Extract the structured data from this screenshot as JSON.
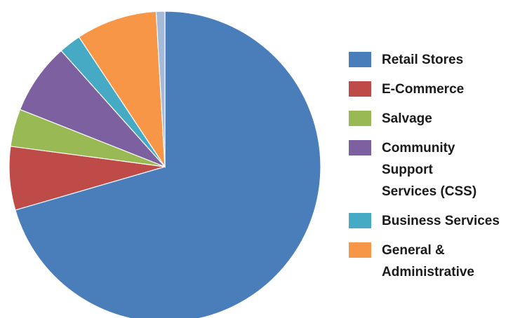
{
  "chart_data": {
    "type": "pie",
    "categories": [
      "Retail Stores",
      "E-Commerce",
      "Salvage",
      "Community\nSupport\nServices (CSS)",
      "Business Services",
      "General &\nAdministrative",
      null
    ],
    "values": [
      70.5,
      6.6,
      3.9,
      7.4,
      2.3,
      8.4,
      0.9
    ],
    "colors": [
      "#4a7ebb",
      "#be4b48",
      "#98b954",
      "#7d60a0",
      "#46aac5",
      "#f79646",
      "#a5b9d9"
    ],
    "legend": "right"
  }
}
